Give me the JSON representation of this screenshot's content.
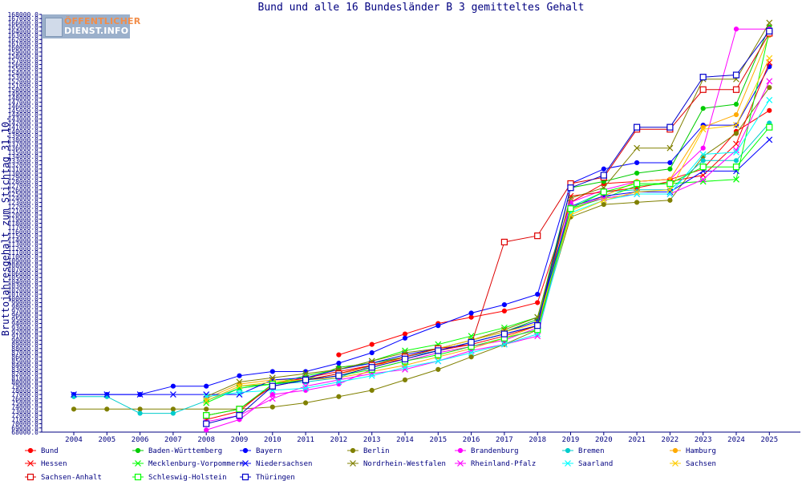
{
  "logo": {
    "line1": "ÖFFENTLICHER",
    "line2": "DIENST.INFO"
  },
  "chart_data": {
    "type": "line",
    "title": "Bund und alle 16 Bundesländer B 3 gemitteltes Gehalt",
    "xlabel": "",
    "ylabel": "Bruttojahresgehalt zum Stichtag 31.10.",
    "ylim": [
      68000,
      168000
    ],
    "y_tick_step": 1000,
    "grid": false,
    "legend_position": "bottom",
    "x": [
      2004,
      2005,
      2006,
      2007,
      2008,
      2009,
      2010,
      2011,
      2012,
      2013,
      2014,
      2015,
      2016,
      2017,
      2018,
      2019,
      2020,
      2021,
      2022,
      2023,
      2024,
      2025
    ],
    "series": [
      {
        "name": "Bund",
        "color": "#ff0000",
        "marker": "dot",
        "values": [
          null,
          null,
          null,
          null,
          null,
          null,
          null,
          null,
          86500,
          89000,
          91500,
          94000,
          95500,
          97000,
          99000,
          123000,
          127500,
          128000,
          128500,
          131000,
          140000,
          145000
        ]
      },
      {
        "name": "Baden-Württemberg",
        "color": "#00cc00",
        "marker": "dot",
        "values": [
          null,
          null,
          null,
          null,
          75500,
          79000,
          79500,
          80500,
          83500,
          84500,
          86000,
          88000,
          90000,
          92000,
          95000,
          126500,
          128000,
          130000,
          131000,
          145500,
          146500,
          165000
        ]
      },
      {
        "name": "Bayern",
        "color": "#0000ff",
        "marker": "dot",
        "values": [
          77000,
          77000,
          77000,
          79000,
          79000,
          81500,
          82500,
          82500,
          84500,
          87000,
          90500,
          93500,
          96500,
          98500,
          101000,
          127500,
          131000,
          132500,
          132500,
          141500,
          141500,
          155500
        ]
      },
      {
        "name": "Berlin",
        "color": "#808000",
        "marker": "dot",
        "values": [
          73500,
          73500,
          73500,
          73500,
          73500,
          73500,
          74000,
          75000,
          76500,
          78000,
          80500,
          83000,
          86000,
          89000,
          92500,
          119500,
          122500,
          123000,
          123500,
          134000,
          139500,
          150500
        ]
      },
      {
        "name": "Brandenburg",
        "color": "#ff00ff",
        "marker": "dot",
        "values": [
          null,
          null,
          null,
          null,
          68500,
          71000,
          77000,
          78000,
          79500,
          83000,
          85000,
          87000,
          88500,
          90000,
          93000,
          123000,
          126000,
          128000,
          128500,
          136000,
          164500,
          164500
        ]
      },
      {
        "name": "Bremen",
        "color": "#00cccc",
        "marker": "dot",
        "values": [
          76500,
          76500,
          72500,
          72500,
          75500,
          78500,
          79500,
          80000,
          81000,
          84000,
          86000,
          87500,
          89500,
          91500,
          93500,
          122000,
          125500,
          126000,
          126000,
          133000,
          133000,
          142000
        ]
      },
      {
        "name": "Hamburg",
        "color": "#ffaa00",
        "marker": "dot",
        "values": [
          null,
          null,
          null,
          null,
          76000,
          79500,
          80500,
          80500,
          81000,
          82500,
          84000,
          86000,
          88000,
          90500,
          93500,
          121000,
          124500,
          128000,
          128500,
          141000,
          144000,
          163000
        ]
      },
      {
        "name": "Hessen",
        "color": "#ff0000",
        "marker": "x",
        "values": [
          null,
          null,
          null,
          null,
          71000,
          73000,
          79500,
          81000,
          82500,
          84000,
          85500,
          87500,
          89000,
          91000,
          93500,
          124500,
          125500,
          126500,
          128000,
          129500,
          137000,
          156500
        ]
      },
      {
        "name": "Mecklenburg-Vorpommern",
        "color": "#00ff00",
        "marker": "x",
        "values": [
          null,
          null,
          null,
          null,
          75000,
          78500,
          79500,
          81500,
          83000,
          85000,
          87500,
          89000,
          91000,
          93000,
          95500,
          121500,
          124000,
          127000,
          127500,
          128000,
          128500,
          164000
        ]
      },
      {
        "name": "Niedersachsen",
        "color": "#0000ff",
        "marker": "x",
        "values": [
          77000,
          77000,
          77000,
          77000,
          77000,
          77000,
          80500,
          81000,
          83000,
          84500,
          86500,
          88000,
          90000,
          92000,
          94500,
          122000,
          124500,
          125500,
          125500,
          130500,
          130500,
          138000
        ]
      },
      {
        "name": "Nordrhein-Westfalen",
        "color": "#808000",
        "marker": "x",
        "values": [
          null,
          null,
          null,
          null,
          76500,
          80000,
          81000,
          82000,
          83000,
          85000,
          87000,
          88000,
          90000,
          92500,
          95500,
          124000,
          126500,
          136000,
          136000,
          152500,
          152500,
          166000
        ]
      },
      {
        "name": "Rheinland-Pfalz",
        "color": "#ff00ff",
        "marker": "x",
        "values": [
          null,
          null,
          null,
          null,
          70500,
          72000,
          76000,
          79000,
          80500,
          82000,
          83000,
          85000,
          87500,
          89000,
          91000,
          122000,
          124000,
          125000,
          125000,
          128500,
          135500,
          152000
        ]
      },
      {
        "name": "Saarland",
        "color": "#00ffff",
        "marker": "x",
        "values": [
          null,
          null,
          null,
          null,
          76500,
          77500,
          78000,
          78500,
          80000,
          81500,
          83500,
          85000,
          87000,
          89000,
          91500,
          120500,
          123500,
          125000,
          125000,
          134500,
          135000,
          147500
        ]
      },
      {
        "name": "Sachsen",
        "color": "#ffcc00",
        "marker": "x",
        "values": [
          null,
          null,
          null,
          null,
          75500,
          79000,
          80000,
          80500,
          82000,
          83500,
          86000,
          88000,
          90000,
          92000,
          94000,
          120000,
          123500,
          125500,
          126000,
          140500,
          141500,
          157500
        ]
      },
      {
        "name": "Sachsen-Anhalt",
        "color": "#dd0000",
        "marker": "square",
        "values": [
          null,
          null,
          null,
          null,
          72000,
          73500,
          79000,
          80500,
          82000,
          84000,
          86000,
          88000,
          89000,
          113500,
          115000,
          127500,
          129000,
          140500,
          140500,
          150000,
          150000,
          163500
        ]
      },
      {
        "name": "Schleswig-Holstein",
        "color": "#00ff00",
        "marker": "square",
        "values": [
          null,
          null,
          null,
          null,
          72000,
          73500,
          79500,
          80500,
          81500,
          83000,
          85000,
          86500,
          88500,
          90500,
          92500,
          121500,
          125500,
          127500,
          127500,
          131500,
          131500,
          141000
        ]
      },
      {
        "name": "Thüringen",
        "color": "#0000cc",
        "marker": "square",
        "values": [
          null,
          null,
          null,
          null,
          70000,
          72000,
          79000,
          80500,
          81500,
          83500,
          85500,
          87500,
          89500,
          91500,
          93500,
          126500,
          129500,
          141000,
          141000,
          153000,
          153500,
          164000
        ]
      }
    ]
  }
}
